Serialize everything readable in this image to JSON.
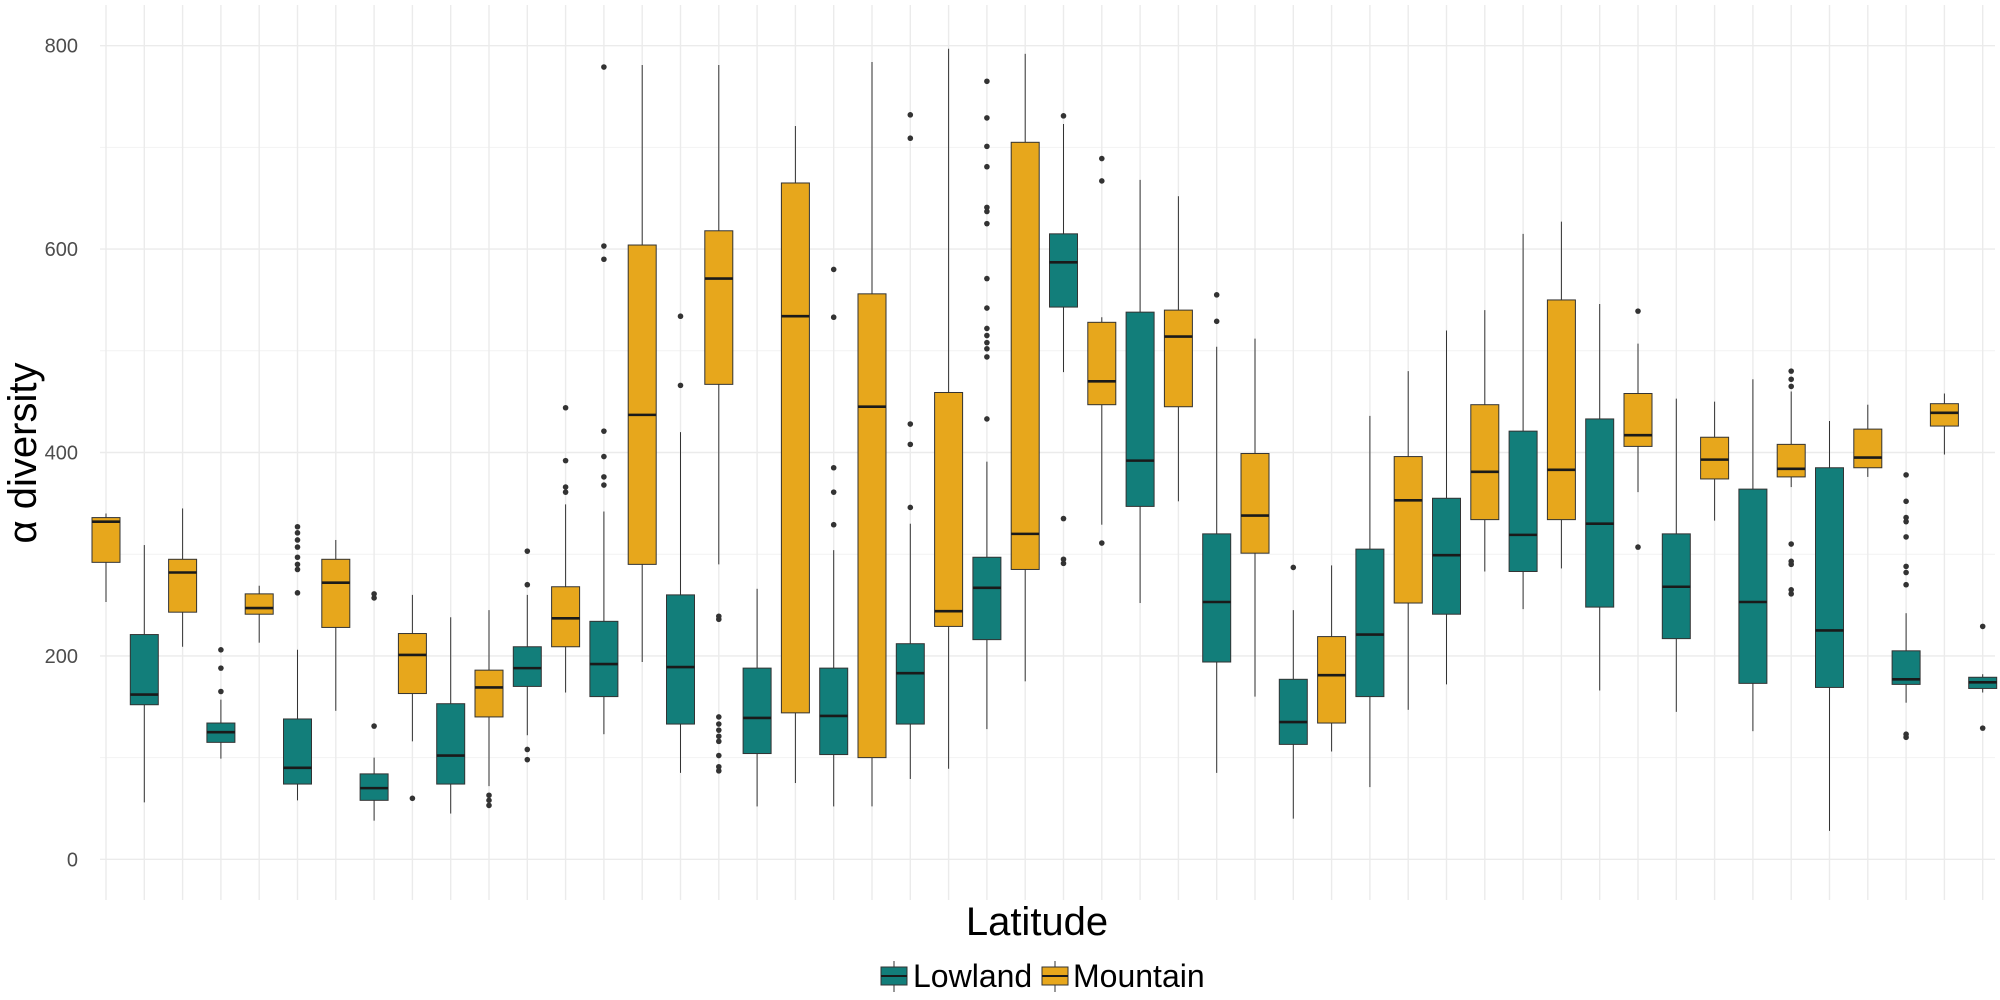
{
  "chart_data": {
    "type": "boxplot",
    "xlabel": "Latitude",
    "ylabel": "α diversity",
    "ylim": [
      -40,
      840
    ],
    "yticks": [
      0,
      200,
      400,
      600,
      800
    ],
    "grid": true,
    "legend": {
      "position": "bottom",
      "entries": [
        {
          "name": "Lowland",
          "color": "#127E7A"
        },
        {
          "name": "Mountain",
          "color": "#E7A71C"
        }
      ]
    },
    "boxes": [
      {
        "group": "Mountain",
        "whisker_low": 253,
        "q1": 292,
        "median": 332,
        "q3": 336,
        "whisker_high": 340,
        "outliers": []
      },
      {
        "group": "Lowland",
        "whisker_low": 56,
        "q1": 152,
        "median": 162,
        "q3": 221,
        "whisker_high": 309,
        "outliers": []
      },
      {
        "group": "Mountain",
        "whisker_low": 209,
        "q1": 243,
        "median": 282,
        "q3": 295,
        "whisker_high": 345,
        "outliers": []
      },
      {
        "group": "Lowland",
        "whisker_low": 99,
        "q1": 115,
        "median": 125,
        "q3": 134,
        "whisker_high": 157,
        "outliers": [
          165,
          188,
          206
        ]
      },
      {
        "group": "Mountain",
        "whisker_low": 213,
        "q1": 241,
        "median": 247,
        "q3": 261,
        "whisker_high": 269,
        "outliers": []
      },
      {
        "group": "Lowland",
        "whisker_low": 58,
        "q1": 74,
        "median": 90,
        "q3": 138,
        "whisker_high": 206,
        "outliers": [
          262,
          285,
          290,
          297,
          307,
          314,
          321,
          327
        ]
      },
      {
        "group": "Mountain",
        "whisker_low": 146,
        "q1": 228,
        "median": 272,
        "q3": 295,
        "whisker_high": 314,
        "outliers": []
      },
      {
        "group": "Lowland",
        "whisker_low": 38,
        "q1": 58,
        "median": 70,
        "q3": 84,
        "whisker_high": 100,
        "outliers": [
          131,
          257,
          261
        ]
      },
      {
        "group": "Mountain",
        "whisker_low": 116,
        "q1": 163,
        "median": 201,
        "q3": 222,
        "whisker_high": 260,
        "outliers": [
          60
        ]
      },
      {
        "group": "Lowland",
        "whisker_low": 45,
        "q1": 74,
        "median": 102,
        "q3": 153,
        "whisker_high": 238,
        "outliers": []
      },
      {
        "group": "Mountain",
        "whisker_low": 72,
        "q1": 140,
        "median": 169,
        "q3": 186,
        "whisker_high": 245,
        "outliers": [
          53,
          58,
          63
        ]
      },
      {
        "group": "Lowland",
        "whisker_low": 122,
        "q1": 170,
        "median": 188,
        "q3": 209,
        "whisker_high": 260,
        "outliers": [
          98,
          108,
          270,
          303
        ]
      },
      {
        "group": "Mountain",
        "whisker_low": 164,
        "q1": 209,
        "median": 237,
        "q3": 268,
        "whisker_high": 349,
        "outliers": [
          361,
          366,
          392,
          444
        ]
      },
      {
        "group": "Lowland",
        "whisker_low": 123,
        "q1": 160,
        "median": 192,
        "q3": 234,
        "whisker_high": 342,
        "outliers": [
          368,
          376,
          396,
          421,
          590,
          603,
          779
        ]
      },
      {
        "group": "Mountain",
        "whisker_low": 194,
        "q1": 290,
        "median": 437,
        "q3": 604,
        "whisker_high": 781,
        "outliers": []
      },
      {
        "group": "Lowland",
        "whisker_low": 85,
        "q1": 133,
        "median": 189,
        "q3": 260,
        "whisker_high": 420,
        "outliers": [
          466,
          534
        ]
      },
      {
        "group": "Mountain",
        "whisker_low": 290,
        "q1": 467,
        "median": 571,
        "q3": 618,
        "whisker_high": 781,
        "outliers": [
          87,
          91,
          102,
          116,
          121,
          127,
          133,
          140,
          236,
          239
        ]
      },
      {
        "group": "Lowland",
        "whisker_low": 52,
        "q1": 104,
        "median": 139,
        "q3": 188,
        "whisker_high": 266,
        "outliers": []
      },
      {
        "group": "Mountain",
        "whisker_low": 75,
        "q1": 144,
        "median": 534,
        "q3": 665,
        "whisker_high": 721,
        "outliers": []
      },
      {
        "group": "Lowland",
        "whisker_low": 52,
        "q1": 103,
        "median": 141,
        "q3": 188,
        "whisker_high": 304,
        "outliers": [
          329,
          361,
          385,
          533,
          580
        ]
      },
      {
        "group": "Mountain",
        "whisker_low": 52,
        "q1": 100,
        "median": 445,
        "q3": 556,
        "whisker_high": 784,
        "outliers": []
      },
      {
        "group": "Lowland",
        "whisker_low": 79,
        "q1": 133,
        "median": 183,
        "q3": 212,
        "whisker_high": 330,
        "outliers": [
          346,
          408,
          428,
          709,
          732
        ]
      },
      {
        "group": "Mountain",
        "whisker_low": 89,
        "q1": 229,
        "median": 244,
        "q3": 459,
        "whisker_high": 797,
        "outliers": []
      },
      {
        "group": "Lowland",
        "whisker_low": 128,
        "q1": 216,
        "median": 267,
        "q3": 297,
        "whisker_high": 391,
        "outliers": [
          433,
          494,
          502,
          508,
          515,
          522,
          542,
          571,
          625,
          637,
          641,
          681,
          701,
          729,
          765
        ]
      },
      {
        "group": "Mountain",
        "whisker_low": 175,
        "q1": 285,
        "median": 320,
        "q3": 705,
        "whisker_high": 792,
        "outliers": []
      },
      {
        "group": "Lowland",
        "whisker_low": 479,
        "q1": 543,
        "median": 587,
        "q3": 615,
        "whisker_high": 723,
        "outliers": [
          291,
          295,
          335,
          731
        ]
      },
      {
        "group": "Mountain",
        "whisker_low": 329,
        "q1": 447,
        "median": 470,
        "q3": 528,
        "whisker_high": 533,
        "outliers": [
          311,
          667,
          689
        ]
      },
      {
        "group": "Lowland",
        "whisker_low": 252,
        "q1": 347,
        "median": 392,
        "q3": 538,
        "whisker_high": 668,
        "outliers": []
      },
      {
        "group": "Mountain",
        "whisker_low": 352,
        "q1": 445,
        "median": 514,
        "q3": 540,
        "whisker_high": 652,
        "outliers": []
      },
      {
        "group": "Lowland",
        "whisker_low": 85,
        "q1": 194,
        "median": 253,
        "q3": 320,
        "whisker_high": 504,
        "outliers": [
          529,
          555
        ]
      },
      {
        "group": "Mountain",
        "whisker_low": 160,
        "q1": 301,
        "median": 338,
        "q3": 399,
        "whisker_high": 512,
        "outliers": []
      },
      {
        "group": "Lowland",
        "whisker_low": 40,
        "q1": 113,
        "median": 135,
        "q3": 177,
        "whisker_high": 245,
        "outliers": [
          287
        ]
      },
      {
        "group": "Mountain",
        "whisker_low": 106,
        "q1": 134,
        "median": 181,
        "q3": 219,
        "whisker_high": 289,
        "outliers": []
      },
      {
        "group": "Lowland",
        "whisker_low": 71,
        "q1": 160,
        "median": 221,
        "q3": 305,
        "whisker_high": 436,
        "outliers": []
      },
      {
        "group": "Mountain",
        "whisker_low": 147,
        "q1": 252,
        "median": 353,
        "q3": 396,
        "whisker_high": 480,
        "outliers": []
      },
      {
        "group": "Lowland",
        "whisker_low": 172,
        "q1": 241,
        "median": 299,
        "q3": 355,
        "whisker_high": 520,
        "outliers": []
      },
      {
        "group": "Mountain",
        "whisker_low": 283,
        "q1": 334,
        "median": 381,
        "q3": 447,
        "whisker_high": 540,
        "outliers": []
      },
      {
        "group": "Lowland",
        "whisker_low": 246,
        "q1": 283,
        "median": 319,
        "q3": 421,
        "whisker_high": 615,
        "outliers": []
      },
      {
        "group": "Mountain",
        "whisker_low": 286,
        "q1": 334,
        "median": 383,
        "q3": 550,
        "whisker_high": 627,
        "outliers": []
      },
      {
        "group": "Lowland",
        "whisker_low": 166,
        "q1": 248,
        "median": 330,
        "q3": 433,
        "whisker_high": 546,
        "outliers": []
      },
      {
        "group": "Mountain",
        "whisker_low": 361,
        "q1": 406,
        "median": 417,
        "q3": 458,
        "whisker_high": 507,
        "outliers": [
          307,
          539
        ]
      },
      {
        "group": "Lowland",
        "whisker_low": 145,
        "q1": 217,
        "median": 268,
        "q3": 320,
        "whisker_high": 453,
        "outliers": []
      },
      {
        "group": "Mountain",
        "whisker_low": 333,
        "q1": 374,
        "median": 393,
        "q3": 415,
        "whisker_high": 450,
        "outliers": []
      },
      {
        "group": "Lowland",
        "whisker_low": 126,
        "q1": 173,
        "median": 253,
        "q3": 364,
        "whisker_high": 472,
        "outliers": []
      },
      {
        "group": "Mountain",
        "whisker_low": 366,
        "q1": 376,
        "median": 384,
        "q3": 408,
        "whisker_high": 460,
        "outliers": [
          261,
          265,
          290,
          293,
          310,
          465,
          472,
          480
        ]
      },
      {
        "group": "Lowland",
        "whisker_low": 28,
        "q1": 169,
        "median": 225,
        "q3": 385,
        "whisker_high": 431,
        "outliers": []
      },
      {
        "group": "Mountain",
        "whisker_low": 376,
        "q1": 385,
        "median": 395,
        "q3": 423,
        "whisker_high": 447,
        "outliers": []
      },
      {
        "group": "Lowland",
        "whisker_low": 154,
        "q1": 172,
        "median": 177,
        "q3": 205,
        "whisker_high": 242,
        "outliers": [
          120,
          123,
          270,
          282,
          288,
          317,
          332,
          336,
          352,
          378
        ]
      },
      {
        "group": "Mountain",
        "whisker_low": 398,
        "q1": 426,
        "median": 439,
        "q3": 448,
        "whisker_high": 458,
        "outliers": []
      },
      {
        "group": "Lowland",
        "whisker_low": 164,
        "q1": 168,
        "median": 174,
        "q3": 179,
        "whisker_high": 182,
        "outliers": [
          129,
          229
        ]
      }
    ]
  }
}
